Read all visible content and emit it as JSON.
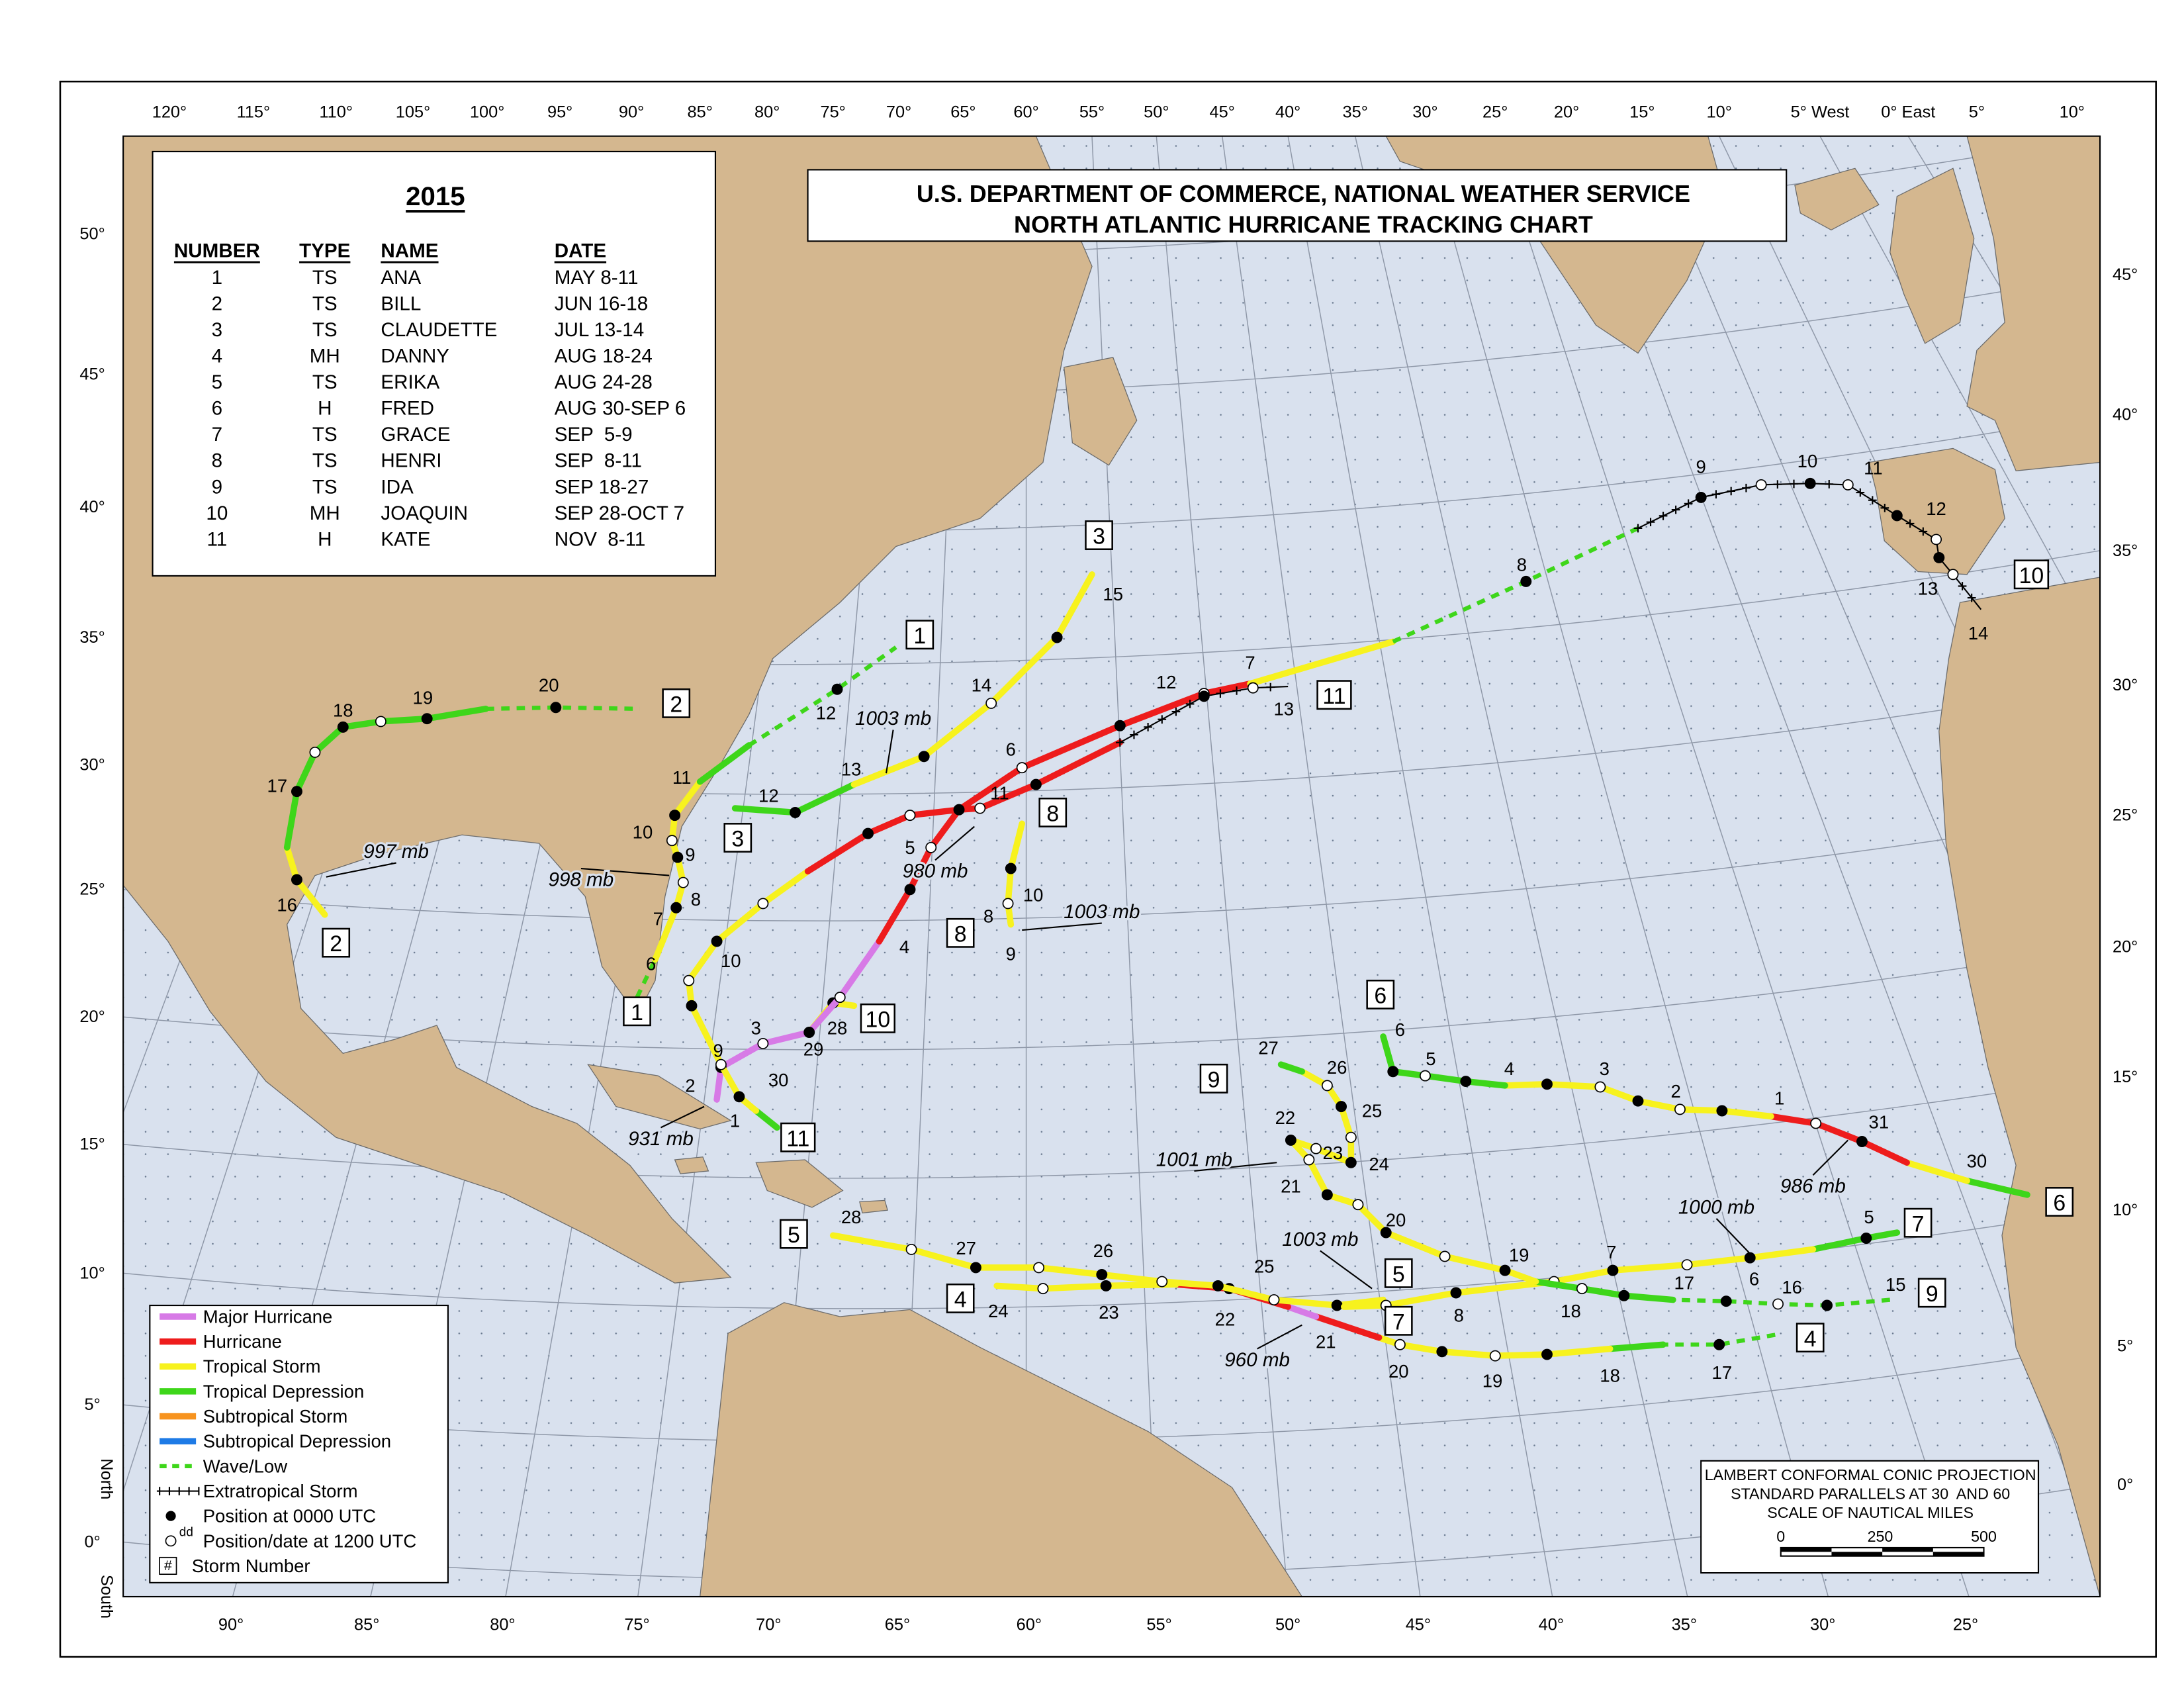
{
  "header": {
    "year": "2015",
    "title_line1": "U.S. DEPARTMENT OF COMMERCE, NATIONAL WEATHER SERVICE",
    "title_line2": "NORTH ATLANTIC HURRICANE TRACKING CHART"
  },
  "table": {
    "columns": [
      "NUMBER",
      "TYPE",
      "NAME",
      "DATE"
    ],
    "rows": [
      [
        "1",
        "TS",
        "ANA",
        "MAY 8-11"
      ],
      [
        "2",
        "TS",
        "BILL",
        "JUN 16-18"
      ],
      [
        "3",
        "TS",
        "CLAUDETTE",
        "JUL 13-14"
      ],
      [
        "4",
        "MH",
        "DANNY",
        "AUG 18-24"
      ],
      [
        "5",
        "TS",
        "ERIKA",
        "AUG 24-28"
      ],
      [
        "6",
        "H",
        "FRED",
        "AUG 30-SEP 6"
      ],
      [
        "7",
        "TS",
        "GRACE",
        "SEP  5-9"
      ],
      [
        "8",
        "TS",
        "HENRI",
        "SEP  8-11"
      ],
      [
        "9",
        "TS",
        "IDA",
        "SEP 18-27"
      ],
      [
        "10",
        "MH",
        "JOAQUIN",
        "SEP 28-OCT 7"
      ],
      [
        "11",
        "H",
        "KATE",
        "NOV  8-11"
      ]
    ]
  },
  "axes": {
    "top": [
      "120°",
      "115°",
      "110°",
      "105°",
      "100°",
      "95°",
      "90°",
      "85°",
      "80°",
      "75°",
      "70°",
      "65°",
      "60°",
      "55°",
      "50°",
      "45°",
      "40°",
      "35°",
      "30°",
      "25°",
      "20°",
      "15°",
      "10°",
      "5° West",
      "0° East",
      "5°",
      "10°"
    ],
    "bottom": [
      "90°",
      "85°",
      "80°",
      "75°",
      "70°",
      "65°",
      "60°",
      "55°",
      "50°",
      "45°",
      "40°",
      "35°",
      "30°",
      "25°"
    ],
    "left": [
      "50°",
      "45°",
      "40°",
      "35°",
      "30°",
      "25°",
      "20°",
      "15°",
      "10°",
      "5°",
      "0°"
    ],
    "right": [
      "45°",
      "40°",
      "35°",
      "30°",
      "25°",
      "20°",
      "15°",
      "10°",
      "5°",
      "0°"
    ],
    "north": "North",
    "south": "South"
  },
  "legend": {
    "items": [
      "Major Hurricane",
      "Hurricane",
      "Tropical Storm",
      "Tropical Depression",
      "Subtropical Storm",
      "Subtropical Depression",
      "Wave/Low",
      "Extratropical Storm",
      "Position at 0000 UTC",
      "Position/date at 1200 UTC",
      "Storm Number"
    ],
    "dd": "dd",
    "hash": "#"
  },
  "projection": {
    "lines": [
      "LAMBERT CONFORMAL CONIC PROJECTION",
      "STANDARD PARALLELS AT 30  AND 60",
      "SCALE OF NAUTICAL MILES"
    ],
    "scale_labels": [
      "0",
      "250",
      "500"
    ]
  },
  "storm_boxes": [
    "1",
    "1",
    "2",
    "2",
    "3",
    "3",
    "4",
    "4",
    "5",
    "5",
    "6",
    "6",
    "7",
    "7",
    "8",
    "8",
    "9",
    "9",
    "10",
    "10",
    "11",
    "11"
  ],
  "pressure_labels": [
    "997 mb",
    "998 mb",
    "1003 mb",
    "980 mb",
    "1003 mb",
    "931 mb",
    "1001 mb",
    "1003 mb",
    "960 mb",
    "1000 mb",
    "986 mb"
  ],
  "date_labels": [
    "6",
    "7",
    "8",
    "9",
    "10",
    "11",
    "12",
    "16",
    "17",
    "18",
    "19",
    "20",
    "12",
    "13",
    "14",
    "15",
    "17",
    "18",
    "19",
    "20",
    "21",
    "22",
    "23",
    "24",
    "25",
    "26",
    "27",
    "28",
    "30",
    "31",
    "1",
    "2",
    "3",
    "4",
    "5",
    "6",
    "5",
    "6",
    "7",
    "8",
    "8",
    "9",
    "10",
    "15",
    "16",
    "17",
    "18",
    "19",
    "20",
    "21",
    "22",
    "23",
    "24",
    "25",
    "26",
    "27",
    "28",
    "29",
    "30",
    "1",
    "2",
    "3",
    "4",
    "5",
    "6",
    "7",
    "8",
    "9",
    "10",
    "11",
    "12",
    "13",
    "14",
    "9",
    "10",
    "11",
    "12",
    "13"
  ]
}
